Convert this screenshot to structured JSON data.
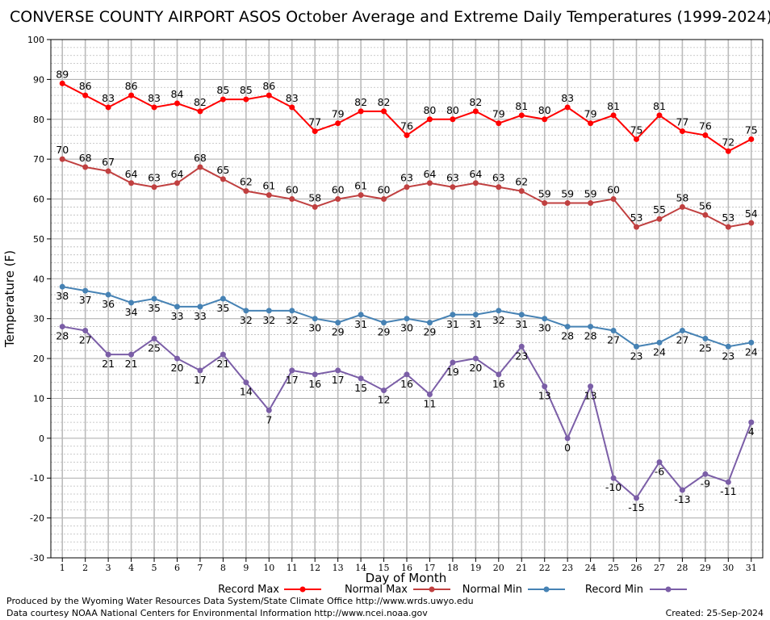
{
  "chart_data": {
    "type": "line",
    "title": "CONVERSE COUNTY AIRPORT ASOS October Average and Extreme Daily Temperatures (1999-2024)",
    "xlabel": "Day of Month",
    "ylabel": "Temperature (F)",
    "ylim": [
      -30,
      100
    ],
    "xlim": [
      1,
      31
    ],
    "grid": true,
    "legend_position": "bottom",
    "x": [
      1,
      2,
      3,
      4,
      5,
      6,
      7,
      8,
      9,
      10,
      11,
      12,
      13,
      14,
      15,
      16,
      17,
      18,
      19,
      20,
      21,
      22,
      23,
      24,
      25,
      26,
      27,
      28,
      29,
      30,
      31
    ],
    "y_ticks": [
      -30,
      -20,
      -10,
      0,
      10,
      20,
      30,
      40,
      50,
      60,
      70,
      80,
      90,
      100
    ],
    "series": [
      {
        "name": "Record Max",
        "color": "#ff0000",
        "values": [
          89,
          86,
          83,
          86,
          83,
          84,
          82,
          85,
          85,
          86,
          83,
          77,
          79,
          82,
          82,
          76,
          80,
          80,
          82,
          79,
          81,
          80,
          83,
          79,
          81,
          75,
          81,
          77,
          76,
          72,
          75
        ]
      },
      {
        "name": "Normal Max",
        "color": "#c04040",
        "values": [
          70,
          68,
          67,
          64,
          63,
          64,
          68,
          65,
          62,
          61,
          60,
          58,
          60,
          61,
          60,
          63,
          64,
          63,
          64,
          63,
          62,
          59,
          59,
          59,
          60,
          53,
          55,
          58,
          56,
          53,
          54
        ]
      },
      {
        "name": "Normal Min",
        "color": "#4682b4",
        "values": [
          38,
          37,
          36,
          34,
          35,
          33,
          33,
          35,
          32,
          32,
          32,
          30,
          29,
          31,
          29,
          30,
          29,
          31,
          31,
          32,
          31,
          30,
          28,
          28,
          27,
          23,
          24,
          27,
          25,
          23,
          24
        ]
      },
      {
        "name": "Record Min",
        "color": "#7b5ea7",
        "values": [
          28,
          27,
          21,
          21,
          25,
          20,
          17,
          21,
          14,
          7,
          17,
          16,
          17,
          15,
          12,
          16,
          11,
          19,
          20,
          16,
          23,
          13,
          0,
          13,
          -10,
          -15,
          -6,
          -13,
          -9,
          -11,
          4
        ]
      }
    ]
  },
  "footer": {
    "line1": "Produced by the Wyoming Water Resources Data System/State Climate Office http://www.wrds.uwyo.edu",
    "line2": "Data courtesy NOAA National Centers for Environmental Information http://www.ncei.noaa.gov",
    "created": "Created:  25-Sep-2024"
  }
}
